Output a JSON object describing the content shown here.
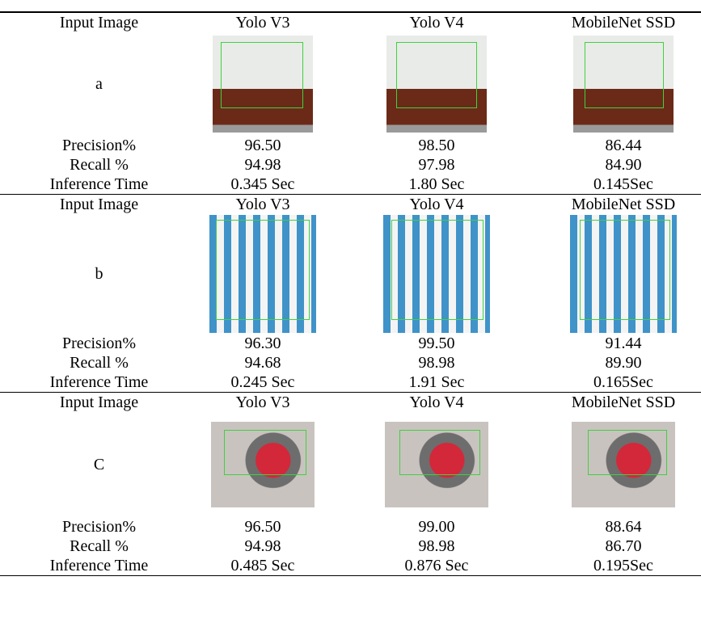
{
  "sections": [
    {
      "label": "a",
      "header": [
        "Input Image",
        "Yolo V3",
        "Yolo V4",
        "MobileNet SSD"
      ],
      "rows": [
        [
          "Precision%",
          "96.50",
          "98.50",
          "86.44"
        ],
        [
          "Recall %",
          "94.98",
          "97.98",
          "84.90"
        ],
        [
          "Inference Time",
          "0.345 Sec",
          "1.80 Sec",
          "0.145Sec"
        ]
      ]
    },
    {
      "label": "b",
      "header": [
        "Input Image",
        "Yolo V3",
        "Yolo V4",
        "MobileNet SSD"
      ],
      "rows": [
        [
          "Precision%",
          "96.30",
          "99.50",
          "91.44"
        ],
        [
          "Recall %",
          "94.68",
          "98.98",
          "89.90"
        ],
        [
          "Inference Time",
          "0.245 Sec",
          "1.91 Sec",
          "0.165Sec"
        ]
      ]
    },
    {
      "label": "C",
      "header": [
        "Input Image",
        "Yolo V3",
        "Yolo V4",
        "MobileNet SSD"
      ],
      "rows": [
        [
          "Precision%",
          "96.50",
          "99.00",
          "88.64"
        ],
        [
          "Recall %",
          "94.98",
          "98.98",
          "86.70"
        ],
        [
          "Inference Time",
          "0.485 Sec",
          "0.876 Sec",
          "0.195Sec"
        ]
      ]
    }
  ]
}
